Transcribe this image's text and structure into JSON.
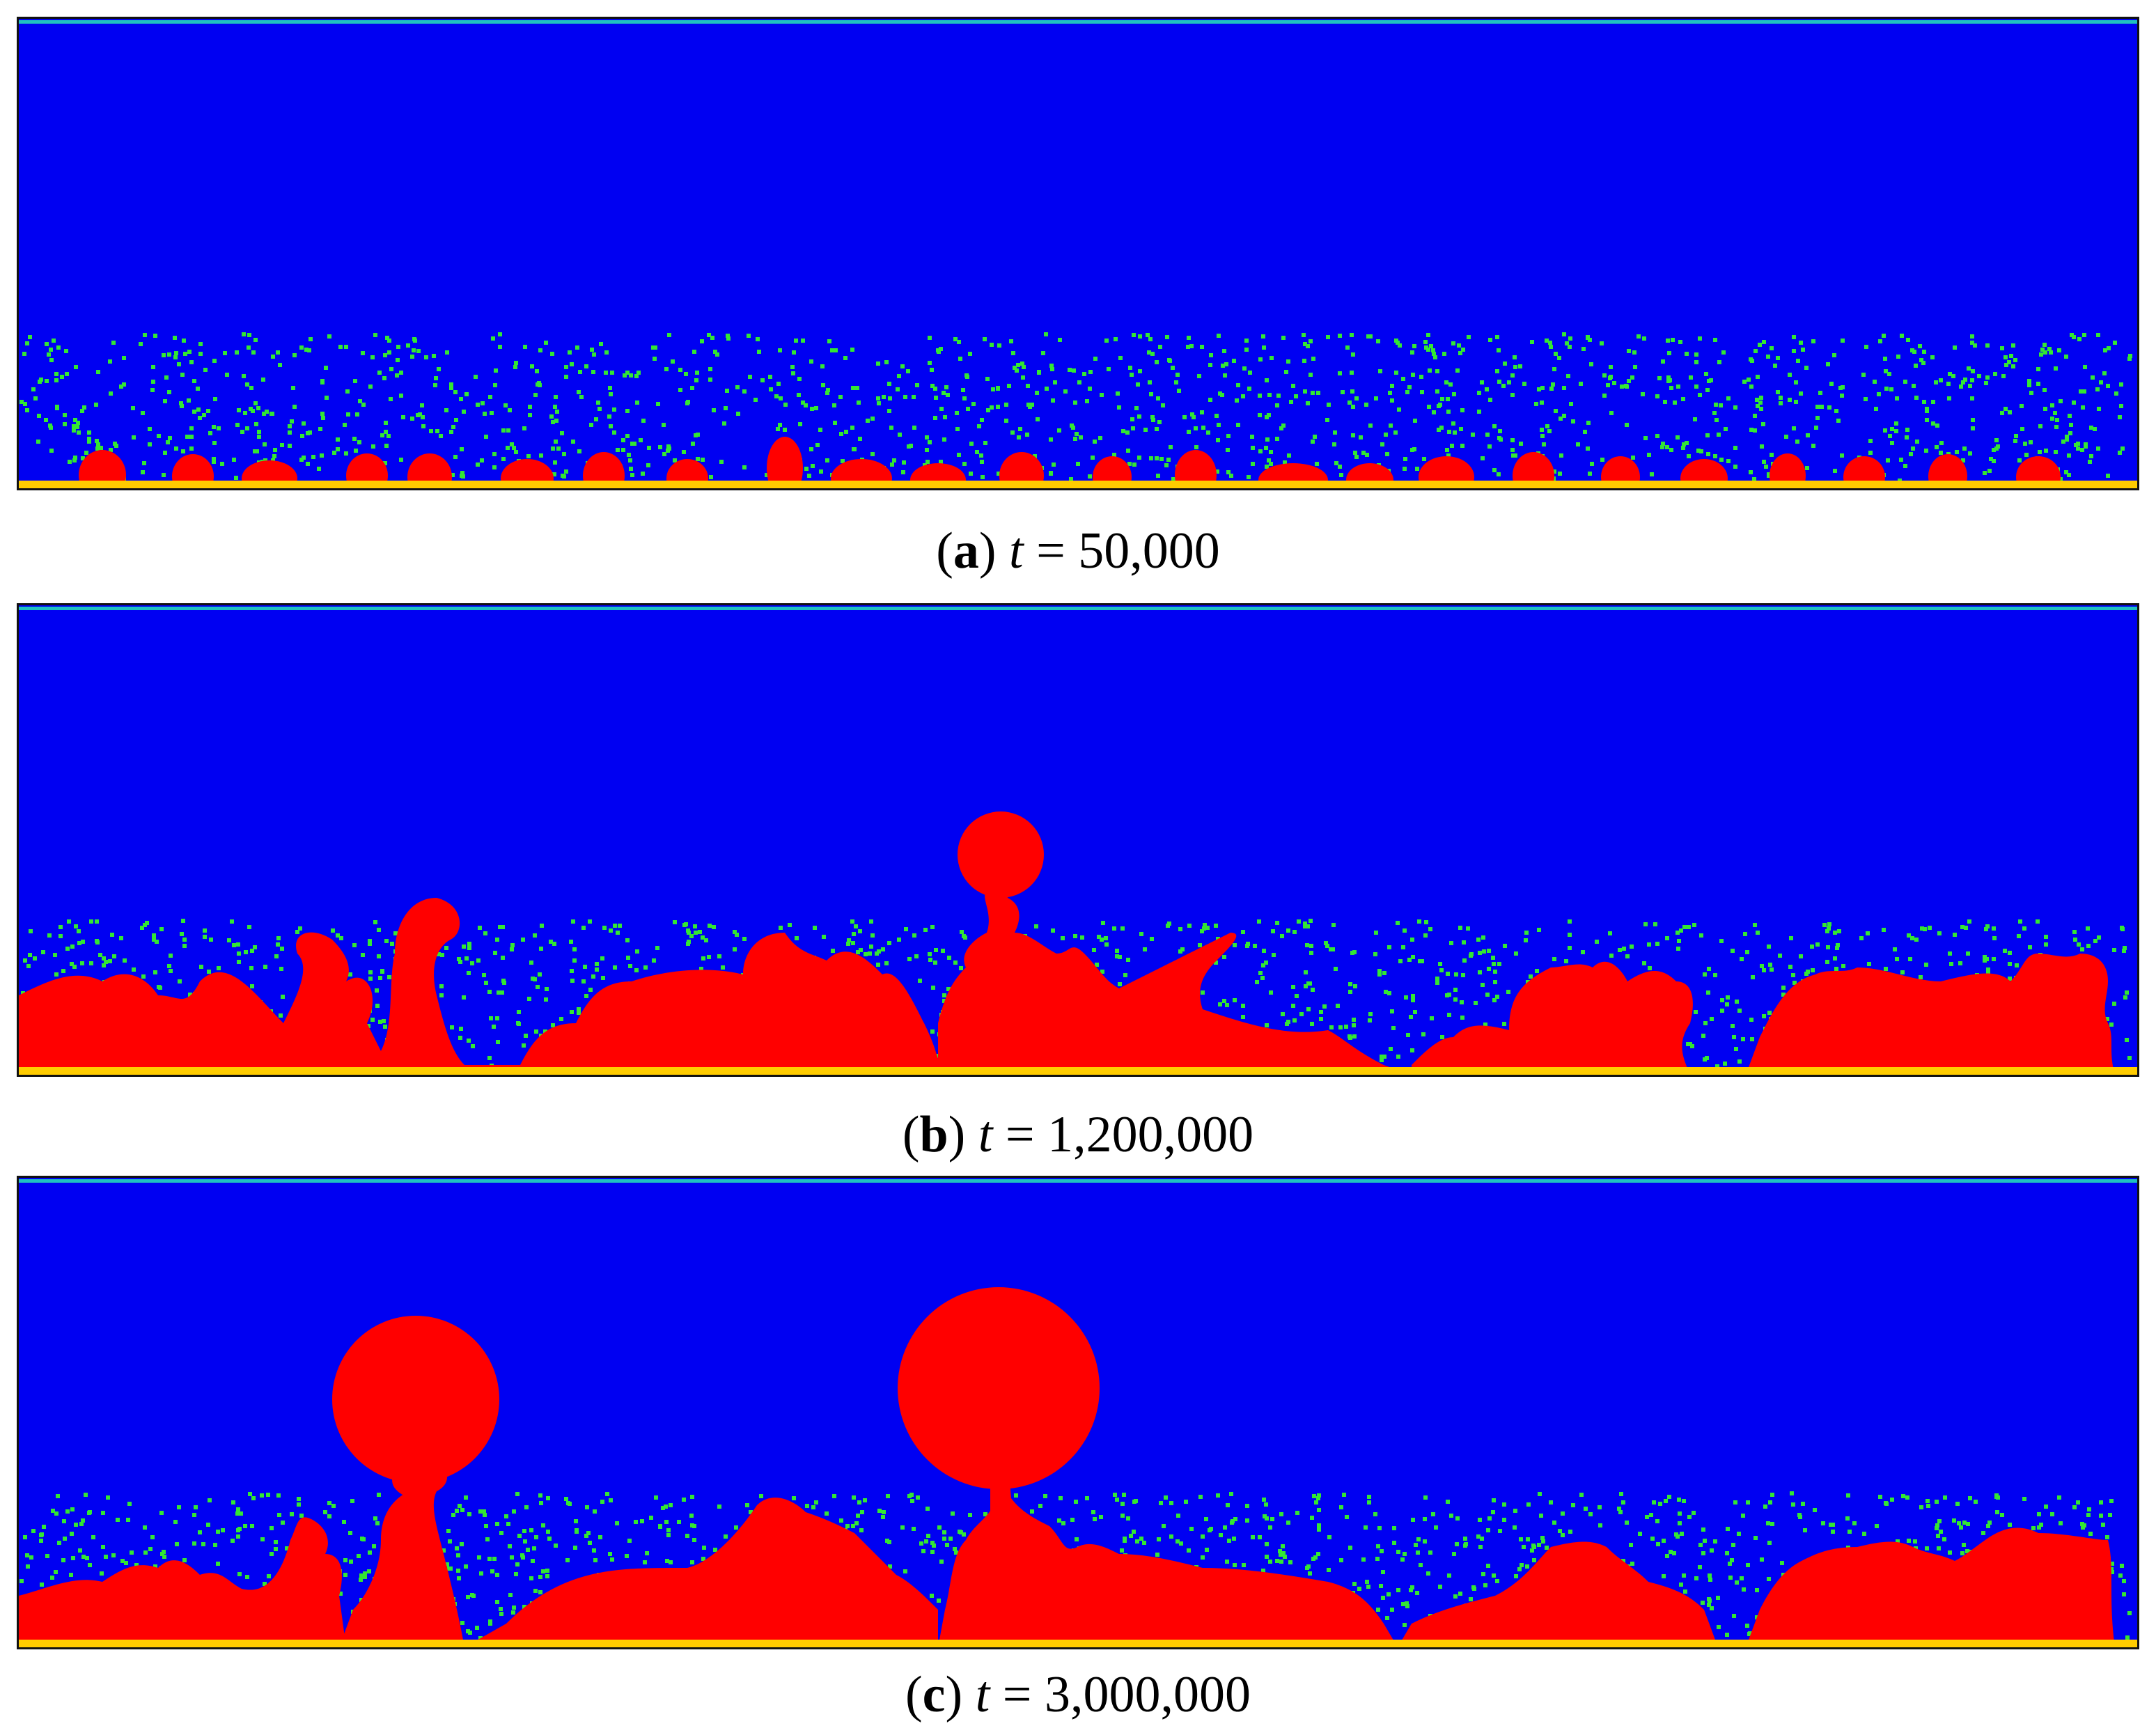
{
  "panels": [
    {
      "id": "a",
      "letter": "a",
      "variable": "t",
      "equals": "=",
      "value": "50,000",
      "stage": "early-nucleation"
    },
    {
      "id": "b",
      "letter": "b",
      "variable": "t",
      "equals": "=",
      "value": "1,200,000",
      "stage": "first-bubble-detachment"
    },
    {
      "id": "c",
      "letter": "c",
      "variable": "t",
      "equals": "=",
      "value": "3,000,000",
      "stage": "two-bubbles-detached"
    }
  ],
  "colors": {
    "liquid": "#0000f2",
    "vapor": "#ff0000",
    "particles": "#33e633",
    "heated_wall": "#ffcc00",
    "top_boundary": "#20c0c0",
    "border": "#111111"
  }
}
